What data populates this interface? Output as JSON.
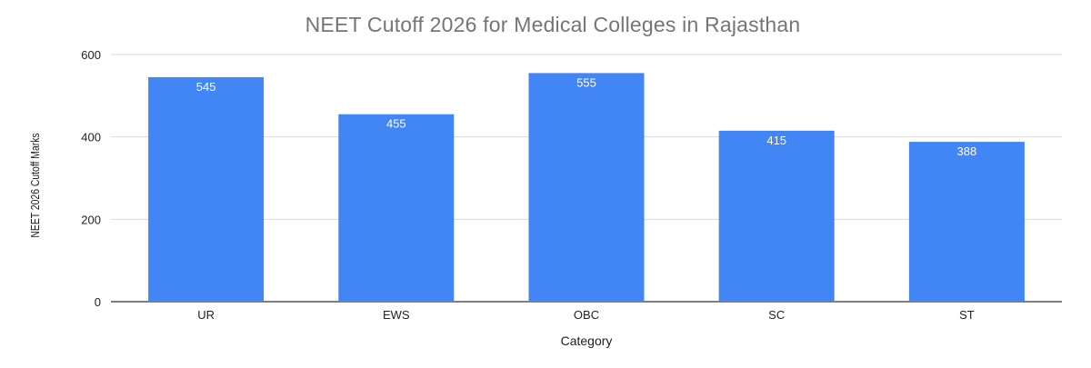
{
  "chart_data": {
    "type": "bar",
    "title": "NEET Cutoff 2026 for Medical Colleges in Rajasthan",
    "xlabel": "Category",
    "ylabel": "NEET 2026 Cutoff Marks",
    "categories": [
      "UR",
      "EWS",
      "OBC",
      "SC",
      "ST"
    ],
    "values": [
      545,
      455,
      555,
      415,
      388
    ],
    "data_labels": [
      "545",
      "455",
      "555",
      "415",
      "388"
    ],
    "ylim": [
      0,
      600
    ],
    "yticks": [
      0,
      200,
      400,
      600
    ],
    "ytick_labels": [
      "0",
      "200",
      "400",
      "600"
    ],
    "grid": true,
    "legend": "none",
    "colors": {
      "bar": "#4285f4",
      "grid": "#d9d9d9",
      "baseline": "#333333",
      "title": "#757575",
      "label_on_bar": "#ffffff",
      "tick_text": "#222222"
    }
  }
}
